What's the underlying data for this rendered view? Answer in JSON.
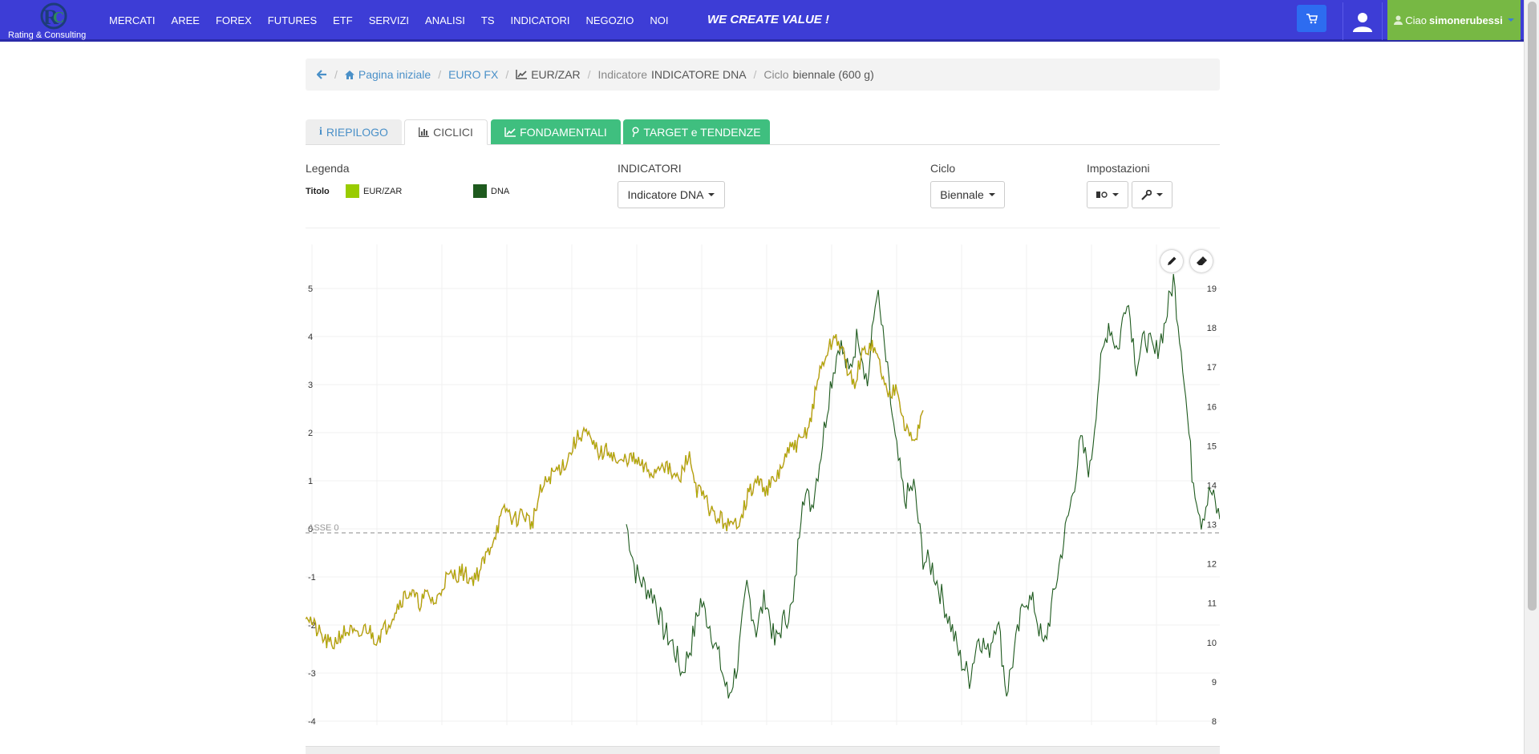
{
  "brand": {
    "logo_text": "Rating & Consulting",
    "tagline": "WE CREATE VALUE !"
  },
  "nav": {
    "items": [
      "MERCATI",
      "AREE",
      "FOREX",
      "FUTURES",
      "ETF",
      "SERVIZI",
      "ANALISI",
      "TS",
      "INDICATORI",
      "NEGOZIO",
      "NOI"
    ]
  },
  "user": {
    "greeting": "Ciao",
    "username": "simonerubessi"
  },
  "colors": {
    "nav_bg": "#3d3dd6",
    "accent_green": "#3fbf7f",
    "user_green": "#77b844",
    "series_price": "#99cc00",
    "series_dna": "#1e5a1e",
    "link": "#4a90c8"
  },
  "breadcrumb": {
    "home": "Pagina iniziale",
    "market": "EURO FX",
    "symbol": "EUR/ZAR",
    "indicator_prefix": "Indicatore",
    "indicator_name": "INDICATORE DNA",
    "cycle_prefix": "Ciclo",
    "cycle_name": "biennale (600 g)"
  },
  "tabs": [
    {
      "label": "RIEPILOGO",
      "icon": "info-icon"
    },
    {
      "label": "CICLICI",
      "icon": "bar-chart-icon"
    },
    {
      "label": "FONDAMENTALI",
      "icon": "line-chart-icon"
    },
    {
      "label": "TARGET e TENDENZE",
      "icon": "pin-icon"
    }
  ],
  "controls": {
    "legend_label": "Legenda",
    "legend_title": "Titolo",
    "legend_items": [
      "EUR/ZAR",
      "DNA"
    ],
    "indicators_label": "INDICATORI",
    "indicator_selected": "Indicatore DNA",
    "cycle_label": "Ciclo",
    "cycle_selected": "Biennale",
    "settings_label": "Impostazioni"
  },
  "chart_data": {
    "type": "line",
    "title": "",
    "baseline_label": "ASSE 0",
    "y_left": {
      "ticks": [
        "5",
        "4",
        "3",
        "2",
        "1",
        "0",
        "-1",
        "-2",
        "-3",
        "-4"
      ],
      "range": [
        -4,
        5
      ]
    },
    "y_right": {
      "ticks": [
        "19",
        "18",
        "17",
        "16",
        "15",
        "14",
        "13",
        "12",
        "11",
        "10",
        "9",
        "8"
      ],
      "range": [
        8,
        19
      ]
    },
    "series": [
      {
        "name": "EUR/ZAR",
        "axis": "right",
        "values": [
          10.8,
          10.4,
          10.1,
          9.9,
          10.2,
          10.3,
          10.1,
          10.4,
          10.1,
          10.3,
          10.7,
          11.1,
          11.3,
          11.0,
          11.2,
          11.0,
          11.6,
          11.7,
          11.8,
          11.6,
          11.8,
          12.3,
          12.9,
          13.4,
          13.1,
          13.3,
          13.0,
          13.8,
          14.2,
          14.4,
          14.6,
          15.1,
          15.4,
          15.0,
          14.8,
          14.9,
          14.5,
          14.7,
          14.6,
          14.4,
          14.3,
          14.6,
          14.3,
          14.1,
          14.8,
          13.9,
          13.6,
          13.2,
          13.1,
          12.9,
          13.2,
          13.8,
          14.1,
          13.9,
          14.1,
          14.6,
          15.0,
          15.1,
          15.6,
          16.8,
          17.4,
          17.8,
          17.2,
          16.5,
          17.3,
          17.6,
          17.1,
          16.2,
          16.6,
          15.4,
          15.1,
          15.9
        ]
      },
      {
        "name": "DNA",
        "axis": "left",
        "values": [
          0.1,
          -0.9,
          -1.2,
          -1.4,
          -2.1,
          -2.4,
          -3.0,
          -2.4,
          -1.5,
          -2.0,
          -2.7,
          -3.5,
          -2.8,
          -1.2,
          -2.1,
          -1.4,
          -2.4,
          -1.9,
          -1.6,
          0.8,
          0.5,
          1.6,
          3.0,
          3.9,
          3.2,
          4.1,
          3.0,
          5.0,
          3.5,
          1.8,
          0.6,
          0.9,
          -0.6,
          -0.8,
          -1.4,
          -2.0,
          -2.7,
          -3.1,
          -2.2,
          -2.6,
          -1.8,
          -3.4,
          -2.4,
          -1.4,
          -1.6,
          -2.5,
          -1.5,
          -0.4,
          0.6,
          1.8,
          1.2,
          3.2,
          4.3,
          3.7,
          4.9,
          3.4,
          4.0,
          3.6,
          4.2,
          5.2,
          3.5,
          1.2,
          0.2,
          0.8,
          0.2
        ]
      }
    ],
    "grid": true,
    "legend": "top-left"
  }
}
